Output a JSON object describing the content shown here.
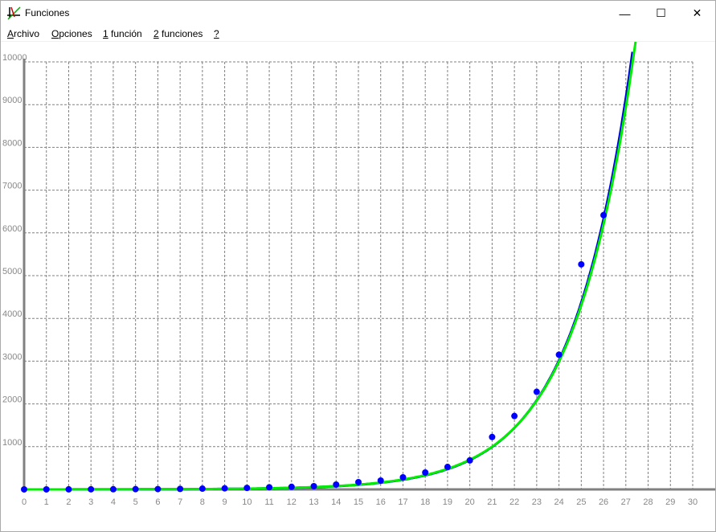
{
  "window": {
    "title": "Funciones",
    "minimize": "—",
    "maximize": "☐",
    "close": "✕"
  },
  "menu": [
    {
      "accel": "A",
      "rest": "rchivo"
    },
    {
      "accel": "O",
      "rest": "pciones"
    },
    {
      "accel": "1",
      "rest": " función"
    },
    {
      "accel": "2",
      "rest": " funciones"
    },
    {
      "accel": "?",
      "rest": ""
    }
  ],
  "colors": {
    "points": "#0000ff",
    "curve1": "#0000dd",
    "curve2": "#00ee00",
    "grid": "#808080",
    "axis": "#808080"
  },
  "chart_data": {
    "type": "scatter",
    "xlim": [
      0,
      30
    ],
    "ylim": [
      0,
      10000
    ],
    "x_ticks": [
      0,
      1,
      2,
      3,
      4,
      5,
      6,
      7,
      8,
      9,
      10,
      11,
      12,
      13,
      14,
      15,
      16,
      17,
      18,
      19,
      20,
      21,
      22,
      23,
      24,
      25,
      26,
      27,
      28,
      29,
      30
    ],
    "y_ticks": [
      1000,
      2000,
      3000,
      4000,
      5000,
      6000,
      7000,
      8000,
      9000,
      10000
    ],
    "grid": true,
    "points": {
      "x": [
        0,
        1,
        2,
        3,
        4,
        5,
        6,
        7,
        8,
        9,
        10,
        11,
        12,
        13,
        14,
        15,
        16,
        17,
        18,
        19,
        20,
        21,
        22,
        23,
        24,
        25,
        26
      ],
      "y": [
        1,
        1,
        2,
        3,
        4,
        6,
        8,
        12,
        18,
        25,
        35,
        50,
        60,
        75,
        113,
        170,
        207,
        282,
        395,
        526,
        679,
        1226,
        1717,
        2283,
        3151,
        5264,
        6415
      ]
    },
    "curves": [
      {
        "color": "#0000dd",
        "a": 0.42,
        "k": 0.37,
        "x_end": 27.35
      },
      {
        "color": "#00ee00",
        "a": 0.469,
        "k": 0.365,
        "x_end": 27.7
      }
    ]
  }
}
